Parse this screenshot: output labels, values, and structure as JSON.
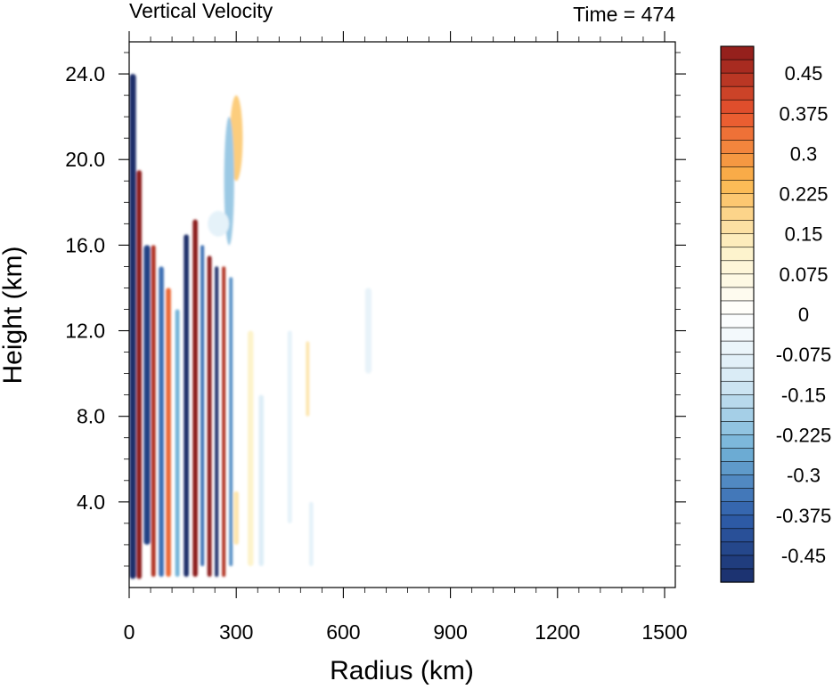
{
  "chart_data": {
    "type": "heatmap",
    "title_left": "Vertical Velocity",
    "title_right": "Time = 474",
    "xlabel": "Radius (km)",
    "ylabel": "Height (km)",
    "xlim": [
      0,
      1530
    ],
    "ylim": [
      0,
      25.5
    ],
    "xticks": [
      0,
      300,
      600,
      900,
      1200,
      1500
    ],
    "xtick_labels": [
      "0",
      "300",
      "600",
      "900",
      "1200",
      "1500"
    ],
    "yticks": [
      4,
      8,
      12,
      16,
      20,
      24
    ],
    "ytick_labels": [
      "4.0",
      "8.0",
      "12.0",
      "16.0",
      "20.0",
      "24.0"
    ],
    "colorbar": {
      "min": -0.5,
      "max": 0.5,
      "step": 0.025,
      "labels": [
        {
          "value": 0.45,
          "text": "0.45"
        },
        {
          "value": 0.375,
          "text": "0.375"
        },
        {
          "value": 0.3,
          "text": "0.3"
        },
        {
          "value": 0.225,
          "text": "0.225"
        },
        {
          "value": 0.15,
          "text": "0.15"
        },
        {
          "value": 0.075,
          "text": "0.075"
        },
        {
          "value": 0,
          "text": "0"
        },
        {
          "value": -0.075,
          "text": "-0.075"
        },
        {
          "value": -0.15,
          "text": "-0.15"
        },
        {
          "value": -0.225,
          "text": "-0.225"
        },
        {
          "value": -0.3,
          "text": "-0.3"
        },
        {
          "value": -0.375,
          "text": "-0.375"
        },
        {
          "value": -0.45,
          "text": "-0.45"
        }
      ],
      "colormap": [
        "#1a2e6b",
        "#2f5fab",
        "#73b3d8",
        "#d6eaf5",
        "#ffffff",
        "#fdf2c8",
        "#fbb54b",
        "#e8542e",
        "#8c1a1a"
      ]
    },
    "field_features": [
      {
        "type": "column",
        "x": 10,
        "width": 18,
        "z0": 0.4,
        "z1": 24.0,
        "value": -0.5
      },
      {
        "type": "column",
        "x": 28,
        "width": 14,
        "z0": 0.4,
        "z1": 19.5,
        "value": 0.5
      },
      {
        "type": "column",
        "x": 50,
        "width": 18,
        "z0": 2.0,
        "z1": 16.0,
        "value": -0.45
      },
      {
        "type": "column",
        "x": 68,
        "width": 12,
        "z0": 0.5,
        "z1": 16.0,
        "value": 0.45
      },
      {
        "type": "column",
        "x": 90,
        "width": 14,
        "z0": 0.5,
        "z1": 15.0,
        "value": -0.35
      },
      {
        "type": "column",
        "x": 110,
        "width": 14,
        "z0": 0.5,
        "z1": 14.0,
        "value": 0.35
      },
      {
        "type": "column",
        "x": 135,
        "width": 12,
        "z0": 0.5,
        "z1": 13.0,
        "value": -0.25
      },
      {
        "type": "column",
        "x": 160,
        "width": 14,
        "z0": 0.5,
        "z1": 16.5,
        "value": -0.5
      },
      {
        "type": "column",
        "x": 185,
        "width": 14,
        "z0": 0.5,
        "z1": 17.2,
        "value": 0.5
      },
      {
        "type": "column",
        "x": 205,
        "width": 10,
        "z0": 1.0,
        "z1": 16.0,
        "value": -0.35
      },
      {
        "type": "column",
        "x": 225,
        "width": 12,
        "z0": 0.5,
        "z1": 15.5,
        "value": 0.5
      },
      {
        "type": "column",
        "x": 245,
        "width": 10,
        "z0": 0.5,
        "z1": 15.0,
        "value": -0.5
      },
      {
        "type": "column",
        "x": 265,
        "width": 10,
        "z0": 0.5,
        "z1": 15.0,
        "value": 0.45
      },
      {
        "type": "column",
        "x": 285,
        "width": 10,
        "z0": 1.0,
        "z1": 14.5,
        "value": -0.3
      },
      {
        "type": "column",
        "x": 300,
        "width": 14,
        "z0": 2.0,
        "z1": 4.5,
        "value": 0.15
      },
      {
        "type": "column",
        "x": 340,
        "width": 16,
        "z0": 1.0,
        "z1": 12.0,
        "value": 0.12
      },
      {
        "type": "column",
        "x": 370,
        "width": 14,
        "z0": 1.0,
        "z1": 9.0,
        "value": -0.1
      },
      {
        "type": "column",
        "x": 450,
        "width": 12,
        "z0": 3.0,
        "z1": 12.0,
        "value": -0.08
      },
      {
        "type": "column",
        "x": 500,
        "width": 10,
        "z0": 8.0,
        "z1": 11.5,
        "value": 0.15
      },
      {
        "type": "column",
        "x": 510,
        "width": 12,
        "z0": 1.0,
        "z1": 4.0,
        "value": -0.08
      },
      {
        "type": "column",
        "x": 670,
        "width": 18,
        "z0": 10.0,
        "z1": 14.0,
        "value": -0.07
      },
      {
        "type": "blob",
        "x": 300,
        "z": 21.0,
        "rx": 18,
        "rz": 2.0,
        "value": 0.2
      },
      {
        "type": "blob",
        "x": 280,
        "z": 19.0,
        "rx": 14,
        "rz": 3.0,
        "value": -0.2
      },
      {
        "type": "blob",
        "x": 250,
        "z": 17.0,
        "rx": 30,
        "rz": 0.6,
        "value": -0.08
      }
    ]
  }
}
